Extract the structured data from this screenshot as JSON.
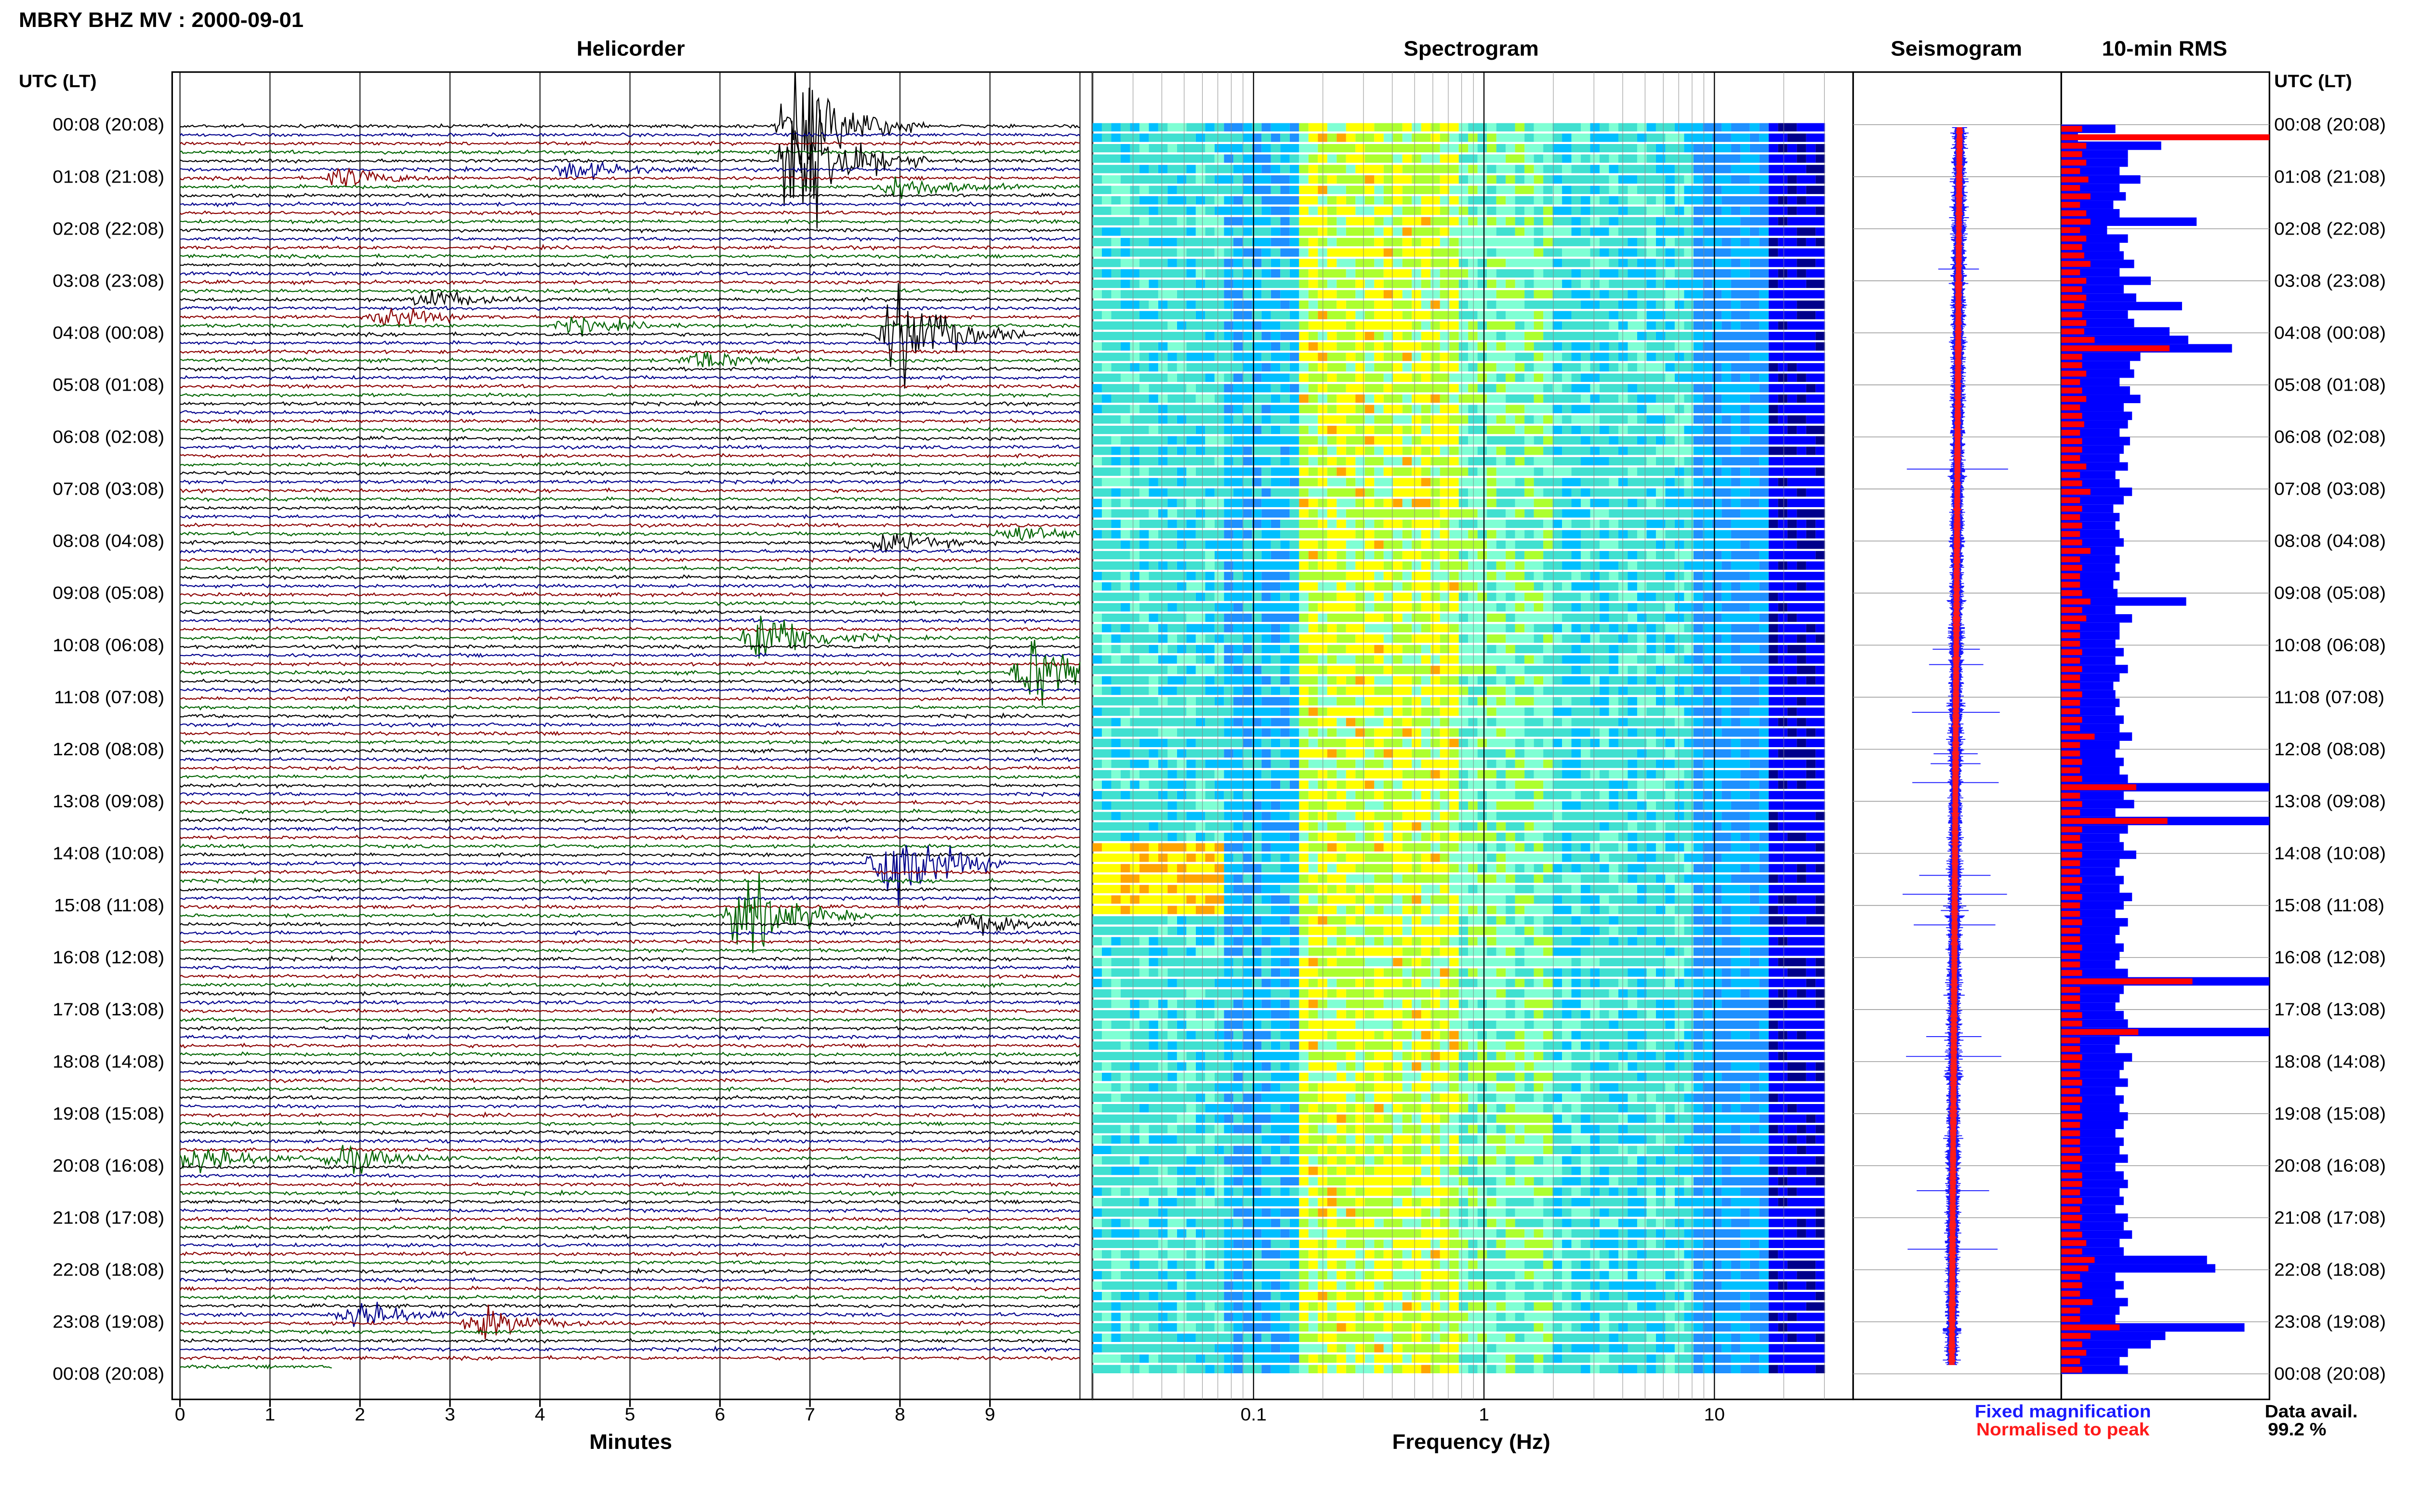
{
  "title": "MBRY BHZ MV : 2000-09-01",
  "panels": {
    "helicorder": "Helicorder",
    "spectrogram": "Spectrogram",
    "seismogram": "Seismogram",
    "rms": "10-min RMS"
  },
  "time_header_left": "UTC (LT)",
  "time_header_right": "UTC (LT)",
  "time_labels": [
    "00:08 (20:08)",
    "01:08 (21:08)",
    "02:08 (22:08)",
    "03:08 (23:08)",
    "04:08 (00:08)",
    "05:08 (01:08)",
    "06:08 (02:08)",
    "07:08 (03:08)",
    "08:08 (04:08)",
    "09:08 (05:08)",
    "10:08 (06:08)",
    "11:08 (07:08)",
    "12:08 (08:08)",
    "13:08 (09:08)",
    "14:08 (10:08)",
    "15:08 (11:08)",
    "16:08 (12:08)",
    "17:08 (13:08)",
    "18:08 (14:08)",
    "19:08 (15:08)",
    "20:08 (16:08)",
    "21:08 (17:08)",
    "22:08 (18:08)",
    "23:08 (19:08)",
    "00:08 (20:08)"
  ],
  "x_axes": {
    "minutes_label": "Minutes",
    "minutes_ticks": [
      "0",
      "1",
      "2",
      "3",
      "4",
      "5",
      "6",
      "7",
      "8",
      "9"
    ],
    "frequency_label": "Frequency (Hz)",
    "frequency_ticks": [
      "0.1",
      "1",
      "10"
    ]
  },
  "legend": {
    "fixed": "Fixed magnification",
    "normalised": "Normalised to peak",
    "fixed_color": "#1a1aff",
    "normalised_color": "#ff1a1a"
  },
  "data_avail": {
    "label": "Data avail.",
    "value": "99.2 %"
  },
  "colors": {
    "trace_cycle": [
      "#000000",
      "#00008b",
      "#8b0000",
      "#006400"
    ],
    "rms_blue": "#0000ff",
    "rms_red": "#ff0000",
    "spectrogram_scale": [
      "#00008b",
      "#0000ff",
      "#1e90ff",
      "#00bfff",
      "#40e0d0",
      "#7fffd4",
      "#adff2f",
      "#ffff00",
      "#ffa500"
    ]
  },
  "chart_data": [
    {
      "type": "line",
      "name": "helicorder",
      "x_units": "minutes",
      "xlim": [
        0,
        10
      ],
      "rows": 144,
      "row_minutes": 10,
      "events": [
        {
          "row": 0,
          "minute": 6.9,
          "amp": 6.0
        },
        {
          "row": 4,
          "minute": 6.9,
          "amp": 8.0
        },
        {
          "row": 5,
          "minute": 4.4,
          "amp": 1.0
        },
        {
          "row": 6,
          "minute": 1.8,
          "amp": 1.0
        },
        {
          "row": 7,
          "minute": 8.0,
          "amp": 1.2
        },
        {
          "row": 20,
          "minute": 2.8,
          "amp": 1.0
        },
        {
          "row": 22,
          "minute": 2.3,
          "amp": 1.0
        },
        {
          "row": 23,
          "minute": 4.4,
          "amp": 0.8
        },
        {
          "row": 24,
          "minute": 8.0,
          "amp": 5.0
        },
        {
          "row": 27,
          "minute": 5.8,
          "amp": 1.0
        },
        {
          "row": 47,
          "minute": 9.3,
          "amp": 1.0
        },
        {
          "row": 48,
          "minute": 7.9,
          "amp": 1.0
        },
        {
          "row": 59,
          "minute": 6.5,
          "amp": 3.0
        },
        {
          "row": 63,
          "minute": 9.5,
          "amp": 4.0
        },
        {
          "row": 85,
          "minute": 7.9,
          "amp": 5.0
        },
        {
          "row": 91,
          "minute": 6.3,
          "amp": 4.0
        },
        {
          "row": 92,
          "minute": 8.8,
          "amp": 1.0
        },
        {
          "row": 119,
          "minute": 0.2,
          "amp": 1.5
        },
        {
          "row": 119,
          "minute": 1.8,
          "amp": 1.5
        },
        {
          "row": 137,
          "minute": 2.0,
          "amp": 1.5
        },
        {
          "row": 138,
          "minute": 3.4,
          "amp": 1.5
        }
      ]
    },
    {
      "type": "heatmap",
      "name": "spectrogram",
      "x_scale": "log",
      "xlim_hz": [
        0.02,
        40
      ],
      "rows": 120
    },
    {
      "type": "line",
      "name": "seismogram",
      "series": [
        {
          "name": "Fixed magnification"
        },
        {
          "name": "Normalised to peak"
        }
      ]
    },
    {
      "type": "bar",
      "name": "10-min RMS",
      "series": [
        {
          "name": "Fixed magnification",
          "values": [
            2.6,
            0.8,
            4.8,
            3.2,
            3.2,
            2.8,
            3.8,
            2.8,
            3.1,
            2.5,
            2.8,
            6.5,
            2.2,
            3.2,
            2.8,
            3.0,
            3.5,
            2.8,
            4.3,
            3.0,
            3.6,
            5.8,
            3.2,
            3.5,
            5.2,
            6.1,
            8.2,
            3.8,
            3.3,
            3.5,
            2.8,
            3.3,
            3.8,
            3.0,
            3.4,
            3.2,
            2.8,
            3.3,
            3.0,
            2.8,
            3.2,
            2.6,
            2.8,
            3.4,
            3.0,
            2.5,
            2.8,
            2.6,
            2.8,
            3.0,
            2.6,
            2.8,
            2.6,
            2.8,
            2.5,
            2.7,
            6.0,
            2.6,
            3.4,
            2.8,
            2.8,
            2.6,
            3.0,
            2.6,
            3.2,
            2.8,
            2.5,
            2.6,
            2.8,
            2.6,
            3.0,
            2.8,
            3.4,
            2.8,
            2.6,
            3.0,
            2.8,
            3.2,
            10.0,
            3.0,
            3.5,
            2.6,
            10.0,
            3.2,
            2.8,
            3.0,
            3.6,
            2.8,
            2.6,
            3.0,
            2.8,
            3.4,
            3.0,
            2.6,
            3.2,
            2.8,
            2.6,
            3.0,
            2.8,
            2.6,
            3.2,
            10.0,
            3.0,
            2.8,
            2.6,
            3.0,
            3.2,
            10.0,
            2.8,
            2.6,
            3.4,
            3.0,
            2.8,
            3.2,
            2.6,
            3.0,
            2.8,
            3.2,
            3.0,
            2.6,
            3.0,
            2.8,
            3.2,
            2.6,
            3.0,
            3.2,
            2.8,
            3.0,
            2.6,
            3.2,
            3.0,
            3.4,
            2.8,
            3.0,
            7.0,
            7.4,
            2.6,
            3.0,
            2.6,
            3.2,
            2.8,
            2.6,
            8.8,
            5.0,
            4.3,
            3.2,
            2.8,
            3.2
          ]
        },
        {
          "name": "Normalised to peak",
          "values": [
            1.0,
            10.0,
            1.2,
            1.0,
            1.2,
            0.9,
            1.3,
            0.9,
            1.4,
            0.9,
            1.2,
            1.4,
            0.9,
            1.2,
            1.0,
            1.1,
            1.4,
            0.9,
            1.2,
            1.0,
            1.2,
            1.1,
            1.0,
            1.2,
            1.1,
            1.6,
            5.2,
            1.0,
            1.0,
            1.2,
            0.9,
            1.0,
            1.2,
            0.9,
            1.0,
            1.1,
            0.9,
            1.0,
            1.0,
            0.9,
            1.2,
            0.9,
            1.0,
            1.4,
            0.9,
            1.0,
            0.9,
            1.0,
            0.9,
            1.0,
            1.4,
            0.9,
            1.0,
            0.9,
            0.9,
            1.0,
            1.4,
            1.0,
            1.2,
            0.9,
            0.9,
            0.9,
            1.0,
            0.9,
            1.0,
            0.9,
            0.9,
            1.0,
            0.9,
            0.9,
            1.0,
            0.9,
            1.6,
            0.9,
            0.9,
            1.0,
            0.9,
            1.0,
            3.6,
            0.9,
            1.0,
            0.9,
            5.1,
            1.0,
            0.9,
            1.0,
            1.0,
            0.9,
            0.9,
            1.0,
            0.9,
            1.0,
            0.9,
            0.9,
            1.0,
            0.9,
            0.9,
            1.0,
            0.9,
            0.9,
            1.0,
            6.3,
            0.9,
            0.9,
            0.9,
            1.0,
            1.0,
            3.7,
            0.9,
            0.9,
            1.0,
            0.9,
            0.9,
            1.0,
            0.9,
            1.0,
            0.9,
            1.0,
            0.9,
            0.9,
            0.9,
            0.9,
            1.0,
            0.9,
            1.0,
            1.0,
            0.9,
            1.0,
            0.9,
            1.0,
            0.9,
            1.0,
            1.2,
            1.0,
            1.6,
            1.3,
            0.9,
            1.0,
            0.9,
            1.5,
            0.9,
            0.9,
            2.8,
            1.4,
            1.0,
            1.2,
            0.9,
            1.0
          ]
        }
      ]
    }
  ]
}
